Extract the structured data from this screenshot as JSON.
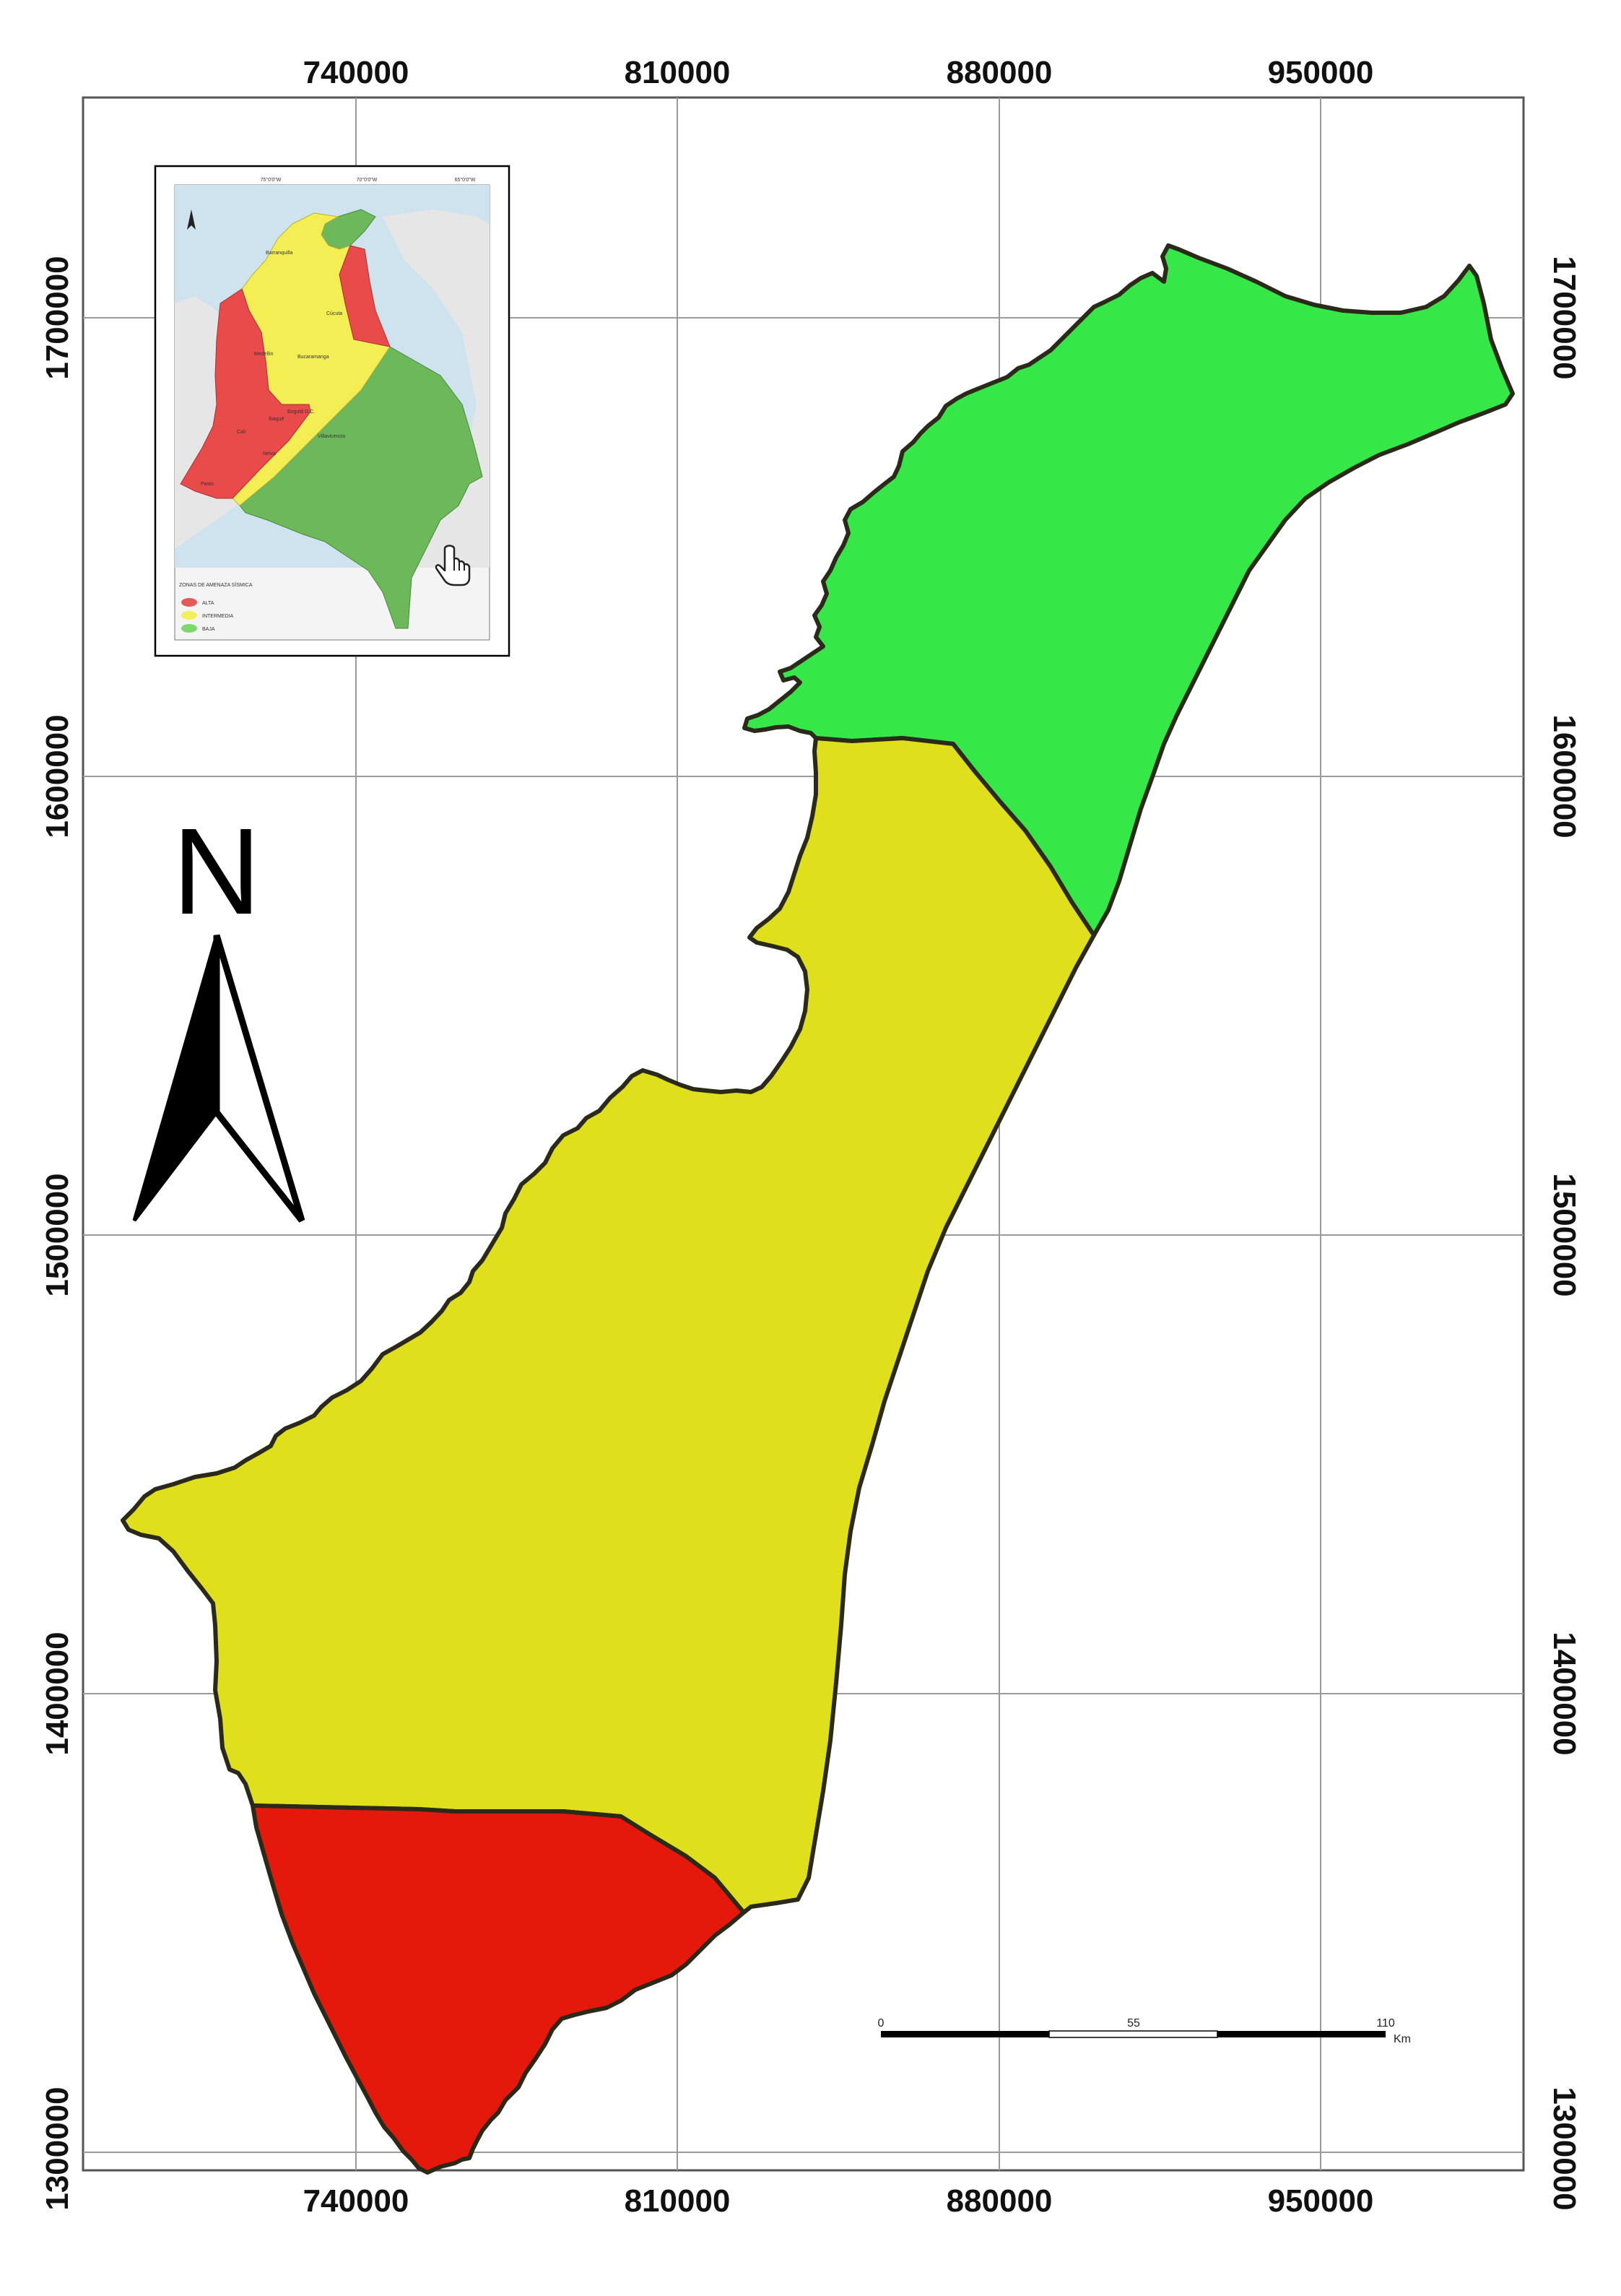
{
  "map": {
    "x_ticks": [
      "740000",
      "810000",
      "880000",
      "950000"
    ],
    "y_ticks": [
      "1700000",
      "1600000",
      "1500000",
      "1400000",
      "1300000"
    ],
    "north_label": "N",
    "regions": [
      {
        "name": "green-zone",
        "color": "#35e848"
      },
      {
        "name": "yellow-zone",
        "color": "#dfe01b"
      },
      {
        "name": "red-zone",
        "color": "#e4190b"
      }
    ],
    "scale_bar": {
      "labels": [
        "0",
        "55",
        "110"
      ],
      "unit": "Km"
    }
  },
  "inset": {
    "top_ticks": [
      "75°0'0\"W",
      "70°0'0\"W",
      "65°0'0\"W"
    ],
    "cities": [
      "Barranquilla",
      "Cúcuta",
      "Medellín",
      "Bucaramanga",
      "Bogotá D.C.",
      "Ibagué",
      "Cali",
      "Neiva",
      "Villavicencio",
      "Pasto"
    ],
    "legend_title": "ZONAS DE AMENAZA SÍSMICA",
    "legend_items": [
      {
        "label": "ALTA",
        "color": "#e45a5a"
      },
      {
        "label": "INTERMEDIA",
        "color": "#f2ef5a"
      },
      {
        "label": "BAJA",
        "color": "#7cd86a"
      }
    ],
    "colors": {
      "high": "#e94b4b",
      "intermediate": "#f2ee54",
      "low": "#6cb85a",
      "sea": "#cfe3ee",
      "land": "#e6e6e6"
    }
  }
}
